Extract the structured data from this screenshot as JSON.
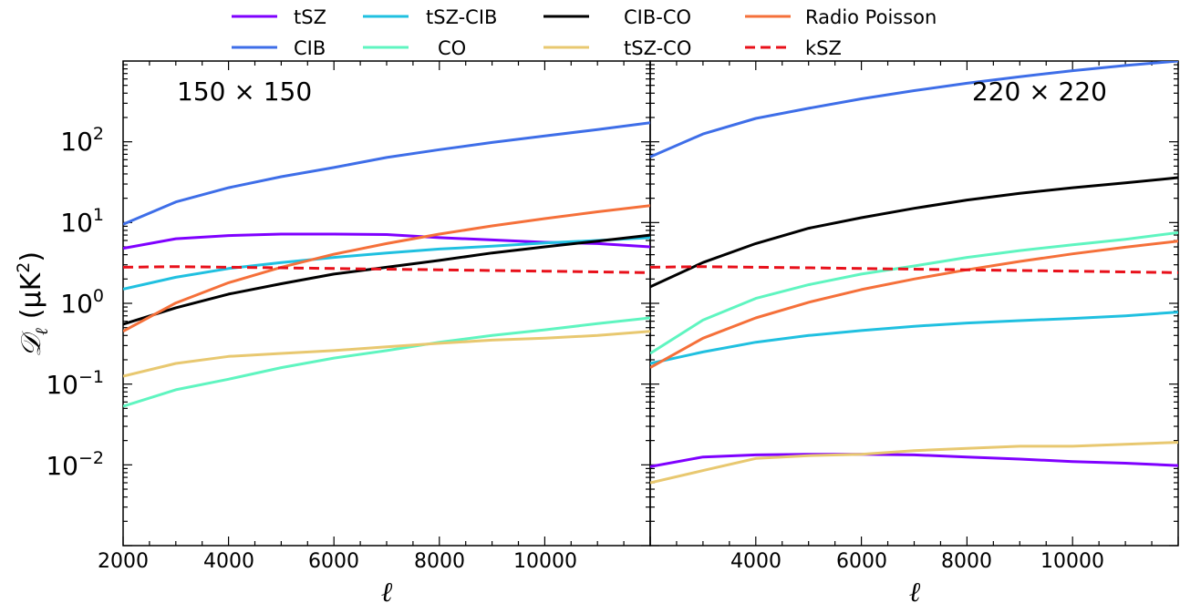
{
  "legend": {
    "placement": "top-center",
    "entries": [
      {
        "label": "tSZ",
        "color": "#7f00ff",
        "style": "solid"
      },
      {
        "label": "CIB",
        "color": "#3e6ee8",
        "style": "solid"
      },
      {
        "label": "tSZ-CIB",
        "color": "#20c0e0",
        "style": "solid"
      },
      {
        "label": "CO",
        "color": "#5ff5c0",
        "style": "solid"
      },
      {
        "label": "CIB-CO",
        "color": "#000000",
        "style": "solid"
      },
      {
        "label": "tSZ-CO",
        "color": "#e8c870",
        "style": "solid"
      },
      {
        "label": "Radio Poisson",
        "color": "#f5703a",
        "style": "solid"
      },
      {
        "label": "kSZ",
        "color": "#e8101a",
        "style": "dashed"
      }
    ]
  },
  "ylabel": {
    "main": "𝒟",
    "sub": "ℓ",
    "unit": "(μK",
    "sup": "2",
    "close": ")"
  },
  "chart_data": [
    {
      "type": "line",
      "panel_label": "150 × 150",
      "xlabel": "ℓ",
      "ylabel": "𝒟ℓ (μK²)",
      "xlim": [
        2000,
        12000
      ],
      "ylim": [
        0.001,
        1000
      ],
      "yscale": "log",
      "grid": false,
      "x": [
        2000,
        3000,
        4000,
        5000,
        6000,
        7000,
        8000,
        9000,
        10000,
        11000,
        12000
      ],
      "xticks": [
        "2000",
        "4000",
        "6000",
        "8000",
        "10000"
      ],
      "yticks": [
        {
          "base": "10",
          "exp": "−2",
          "value": 0.01
        },
        {
          "base": "10",
          "exp": "−1",
          "value": 0.1
        },
        {
          "base": "10",
          "exp": "0",
          "value": 1
        },
        {
          "base": "10",
          "exp": "1",
          "value": 10
        },
        {
          "base": "10",
          "exp": "2",
          "value": 100
        }
      ],
      "series": [
        {
          "name": "tSZ",
          "color": "#7f00ff",
          "values": [
            4.8,
            6.3,
            6.9,
            7.2,
            7.2,
            7.1,
            6.5,
            6.1,
            5.7,
            5.5,
            5.0
          ]
        },
        {
          "name": "CIB",
          "color": "#3e6ee8",
          "values": [
            9.5,
            18,
            27,
            37,
            48,
            64,
            80,
            98,
            118,
            142,
            172
          ]
        },
        {
          "name": "tSZ-CIB",
          "color": "#20c0e0",
          "values": [
            1.5,
            2.1,
            2.7,
            3.2,
            3.7,
            4.2,
            4.7,
            5.1,
            5.6,
            6.0,
            6.5
          ]
        },
        {
          "name": "CO",
          "color": "#5ff5c0",
          "values": [
            0.053,
            0.085,
            0.115,
            0.16,
            0.21,
            0.26,
            0.33,
            0.4,
            0.47,
            0.56,
            0.66
          ]
        },
        {
          "name": "CIB-CO",
          "color": "#000000",
          "values": [
            0.55,
            0.88,
            1.3,
            1.75,
            2.3,
            2.8,
            3.4,
            4.2,
            5.0,
            5.9,
            7.0
          ]
        },
        {
          "name": "tSZ-CO",
          "color": "#e8c870",
          "values": [
            0.125,
            0.18,
            0.22,
            0.24,
            0.26,
            0.29,
            0.32,
            0.35,
            0.37,
            0.4,
            0.45
          ]
        },
        {
          "name": "Radio Poisson",
          "color": "#f5703a",
          "values": [
            0.45,
            1.01,
            1.8,
            2.8,
            4.05,
            5.5,
            7.2,
            9.1,
            11.2,
            13.6,
            16.2
          ]
        },
        {
          "name": "kSZ",
          "color": "#e8101a",
          "dashed": true,
          "values": [
            2.8,
            2.85,
            2.8,
            2.75,
            2.7,
            2.65,
            2.6,
            2.55,
            2.5,
            2.45,
            2.4
          ]
        }
      ]
    },
    {
      "type": "line",
      "panel_label": "220 × 220",
      "xlabel": "ℓ",
      "ylabel": "",
      "xlim": [
        2000,
        12000
      ],
      "ylim": [
        0.001,
        1000
      ],
      "yscale": "log",
      "grid": false,
      "x": [
        2000,
        3000,
        4000,
        5000,
        6000,
        7000,
        8000,
        9000,
        10000,
        11000,
        12000
      ],
      "xticks": [
        "4000",
        "6000",
        "8000",
        "10000"
      ],
      "series": [
        {
          "name": "tSZ",
          "color": "#7f00ff",
          "values": [
            0.0095,
            0.0125,
            0.0133,
            0.0135,
            0.0135,
            0.0133,
            0.0125,
            0.0118,
            0.011,
            0.0105,
            0.0098
          ]
        },
        {
          "name": "CIB",
          "color": "#3e6ee8",
          "values": [
            65,
            125,
            195,
            260,
            340,
            430,
            530,
            640,
            760,
            880,
            1000
          ]
        },
        {
          "name": "tSZ-CIB",
          "color": "#20c0e0",
          "values": [
            0.18,
            0.25,
            0.33,
            0.4,
            0.46,
            0.52,
            0.57,
            0.61,
            0.65,
            0.7,
            0.78
          ]
        },
        {
          "name": "CO",
          "color": "#5ff5c0",
          "values": [
            0.24,
            0.62,
            1.15,
            1.7,
            2.3,
            2.9,
            3.7,
            4.5,
            5.3,
            6.2,
            7.5
          ]
        },
        {
          "name": "CIB-CO",
          "color": "#000000",
          "values": [
            1.6,
            3.2,
            5.5,
            8.5,
            11.5,
            15,
            19,
            23,
            27,
            31,
            36
          ]
        },
        {
          "name": "tSZ-CO",
          "color": "#e8c870",
          "values": [
            0.006,
            0.0085,
            0.012,
            0.013,
            0.0135,
            0.015,
            0.016,
            0.017,
            0.017,
            0.018,
            0.019
          ]
        },
        {
          "name": "Radio Poisson",
          "color": "#f5703a",
          "values": [
            0.16,
            0.37,
            0.66,
            1.03,
            1.48,
            2.0,
            2.6,
            3.3,
            4.1,
            4.95,
            5.9
          ]
        },
        {
          "name": "kSZ",
          "color": "#e8101a",
          "dashed": true,
          "values": [
            2.8,
            2.85,
            2.8,
            2.75,
            2.7,
            2.65,
            2.6,
            2.55,
            2.5,
            2.45,
            2.4
          ]
        }
      ]
    }
  ]
}
